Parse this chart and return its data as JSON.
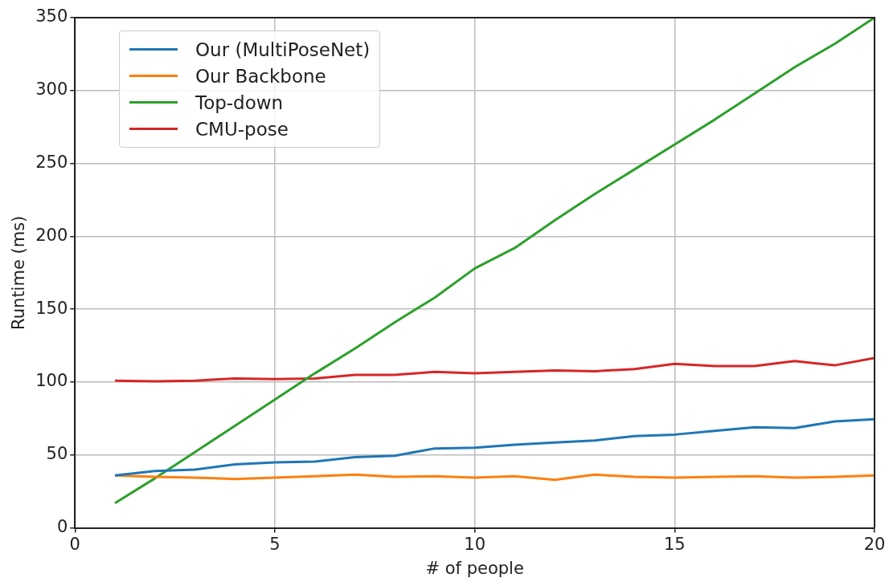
{
  "chart_data": {
    "type": "line",
    "xlabel": "# of people",
    "ylabel": "Runtime (ms)",
    "x": [
      1,
      2,
      3,
      4,
      5,
      6,
      7,
      8,
      9,
      10,
      11,
      12,
      13,
      14,
      15,
      16,
      17,
      18,
      19,
      20
    ],
    "series": [
      {
        "name": "Our (MultiPoseNet)",
        "color": "#1f77b4",
        "values": [
          36,
          39,
          40,
          43.5,
          45,
          45.5,
          48.5,
          49.5,
          54.5,
          55,
          57,
          58.5,
          60,
          63,
          64,
          66.5,
          69,
          68.5,
          73,
          74.5
        ]
      },
      {
        "name": "Our Backbone",
        "color": "#ff7f0e",
        "values": [
          36,
          35,
          34.5,
          33.5,
          34.5,
          35.5,
          36.5,
          35,
          35.5,
          34.5,
          35.5,
          33,
          36.5,
          35,
          34.5,
          35,
          35.5,
          34.5,
          35,
          36
        ]
      },
      {
        "name": "Top-down",
        "color": "#2ca02c",
        "values": [
          17,
          34,
          52,
          70,
          88,
          106,
          123,
          141,
          158,
          178,
          192,
          211,
          229,
          246,
          263,
          280,
          298,
          316,
          332,
          350
        ]
      },
      {
        "name": "CMU-pose",
        "color": "#d62728",
        "values": [
          101,
          100.5,
          101,
          102.5,
          102,
          102.5,
          105,
          105,
          107,
          106,
          107,
          108,
          107.5,
          109,
          112.5,
          111,
          111,
          114.5,
          111.5,
          116.5
        ]
      }
    ],
    "xlim": [
      0,
      20
    ],
    "xticks": [
      0,
      5,
      10,
      15,
      20
    ],
    "ylim": [
      0,
      350
    ],
    "yticks": [
      0,
      50,
      100,
      150,
      200,
      250,
      300,
      350
    ],
    "grid": true,
    "legend": "top left",
    "marker": "none",
    "line_style": "solid"
  }
}
